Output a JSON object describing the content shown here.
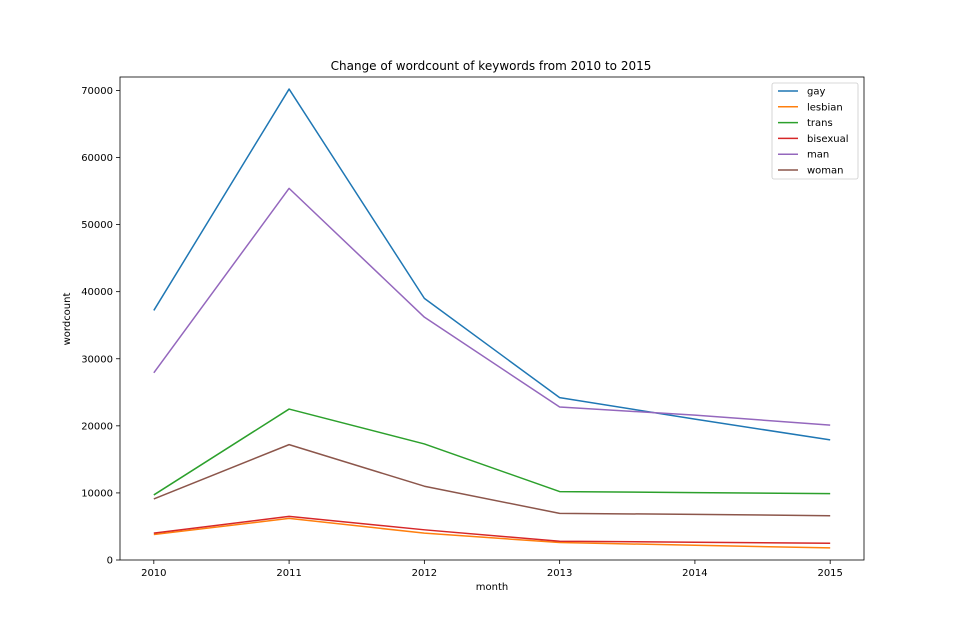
{
  "chart_data": {
    "type": "line",
    "title": "Change of wordcount of keywords from 2010 to 2015",
    "xlabel": "month",
    "ylabel": "wordcount",
    "x": [
      2010,
      2011,
      2012,
      2013,
      2014,
      2015
    ],
    "x_ticks": [
      "2010",
      "2011",
      "2012",
      "2013",
      "2014",
      "2015"
    ],
    "y_ticks": [
      "0",
      "10000",
      "20000",
      "30000",
      "40000",
      "50000",
      "60000",
      "70000"
    ],
    "y_tick_values": [
      0,
      10000,
      20000,
      30000,
      40000,
      50000,
      60000,
      70000
    ],
    "xlim": [
      2009.75,
      2015.25
    ],
    "ylim": [
      0,
      72000
    ],
    "grid": false,
    "legend_position": "top-right",
    "series": [
      {
        "name": "gay",
        "color": "#1f77b4",
        "values": [
          37200,
          70200,
          39000,
          24200,
          21000,
          17900
        ]
      },
      {
        "name": "lesbian",
        "color": "#ff7f0e",
        "values": [
          3800,
          6200,
          4000,
          2600,
          2200,
          1800
        ]
      },
      {
        "name": "trans",
        "color": "#2ca02c",
        "values": [
          9700,
          22500,
          17300,
          10200,
          10050,
          9900
        ]
      },
      {
        "name": "bisexual",
        "color": "#d62728",
        "values": [
          4000,
          6500,
          4500,
          2800,
          2650,
          2500
        ]
      },
      {
        "name": "man",
        "color": "#9467bd",
        "values": [
          27900,
          55400,
          36200,
          22800,
          21600,
          20100
        ]
      },
      {
        "name": "woman",
        "color": "#8c564b",
        "values": [
          9100,
          17200,
          11000,
          6950,
          6800,
          6600
        ]
      }
    ]
  }
}
